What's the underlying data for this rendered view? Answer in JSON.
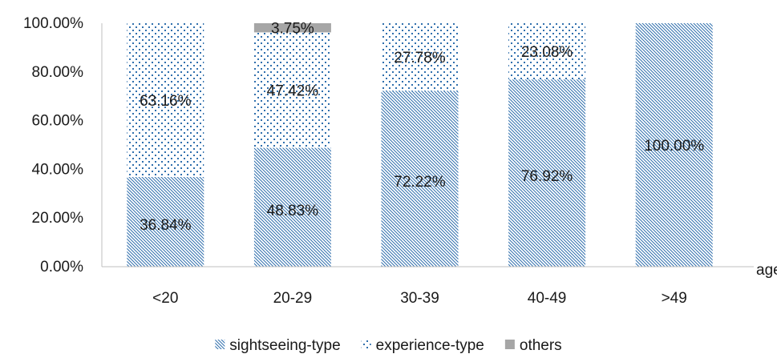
{
  "chart_data": {
    "type": "bar",
    "stacked": true,
    "categories": [
      "<20",
      "20-29",
      "30-39",
      "40-49",
      ">49"
    ],
    "series": [
      {
        "name": "sightseeing-type",
        "values": [
          36.84,
          48.83,
          72.22,
          76.92,
          100.0
        ],
        "labels": [
          "36.84%",
          "48.83%",
          "72.22%",
          "76.92%",
          "100.00%"
        ],
        "color": "#2f6fad",
        "pattern": "diagonal-hatch"
      },
      {
        "name": "experience-type",
        "values": [
          63.16,
          47.42,
          27.78,
          23.08,
          0
        ],
        "labels": [
          "63.16%",
          "47.42%",
          "27.78%",
          "23.08%",
          ""
        ],
        "color": "#2f6fad",
        "pattern": "dots"
      },
      {
        "name": "others",
        "values": [
          0,
          3.75,
          0,
          0,
          0
        ],
        "labels": [
          "",
          "3.75%",
          "",
          "",
          ""
        ],
        "color": "#a6a6a6",
        "pattern": "solid"
      }
    ],
    "yticks": [
      "0.00%",
      "20.00%",
      "40.00%",
      "60.00%",
      "80.00%",
      "100.00%"
    ],
    "ylim": [
      0,
      100
    ],
    "xlabel": "age",
    "ylabel": "",
    "title": "",
    "grid": false,
    "legend": "bottom"
  }
}
